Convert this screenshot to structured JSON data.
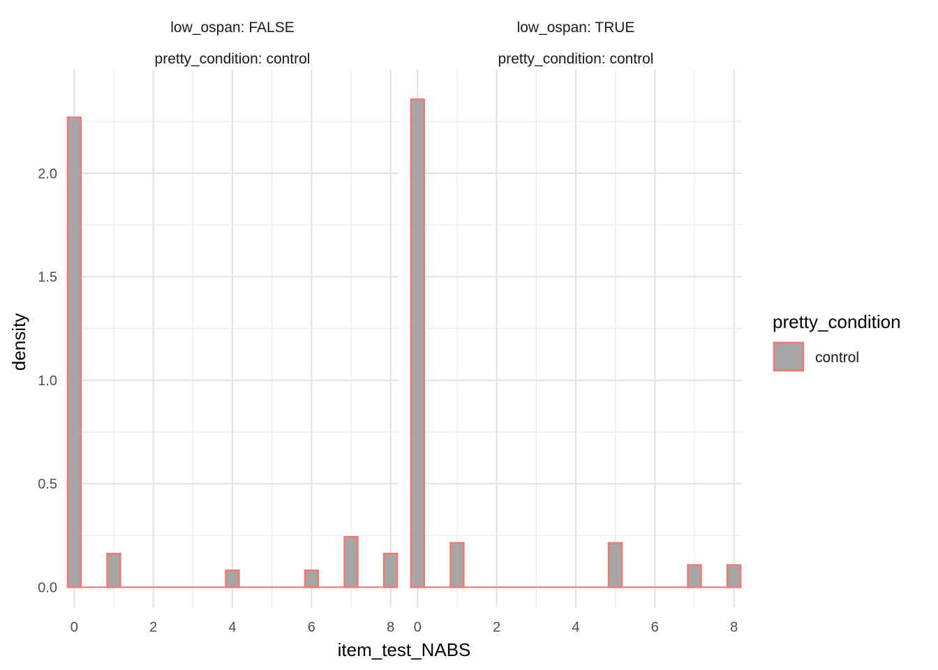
{
  "chart_data": {
    "type": "bar",
    "xlabel": "item_test_NABS",
    "ylabel": "density",
    "xlim": [
      -0.2,
      8.2
    ],
    "ylim": [
      -0.1,
      2.5
    ],
    "x_ticks": [
      0,
      2,
      4,
      6,
      8
    ],
    "x_tick_labels": [
      "0",
      "2",
      "4",
      "6",
      "8"
    ],
    "y_ticks": [
      0,
      0.5,
      1,
      1.5,
      2
    ],
    "y_tick_labels": [
      "0.0",
      "0.5",
      "1.0",
      "1.5",
      "2.0"
    ],
    "grid": true,
    "bin_width": 0.3333,
    "legend": {
      "title": "pretty_condition",
      "position": "right",
      "entries": [
        {
          "label": "control",
          "fill": "#a6a6a6",
          "stroke": "#f8766d"
        }
      ]
    },
    "panels": [
      {
        "strip_top": "low_ospan: FALSE",
        "strip_bottom": "pretty_condition: control",
        "x": [
          0,
          1,
          4,
          6,
          7,
          8
        ],
        "values": [
          2.27,
          0.162,
          0.081,
          0.081,
          0.243,
          0.162
        ]
      },
      {
        "strip_top": "low_ospan: TRUE",
        "strip_bottom": "pretty_condition: control",
        "x": [
          0,
          1,
          5,
          7,
          8
        ],
        "values": [
          2.357,
          0.214,
          0.214,
          0.107,
          0.107
        ]
      }
    ]
  }
}
